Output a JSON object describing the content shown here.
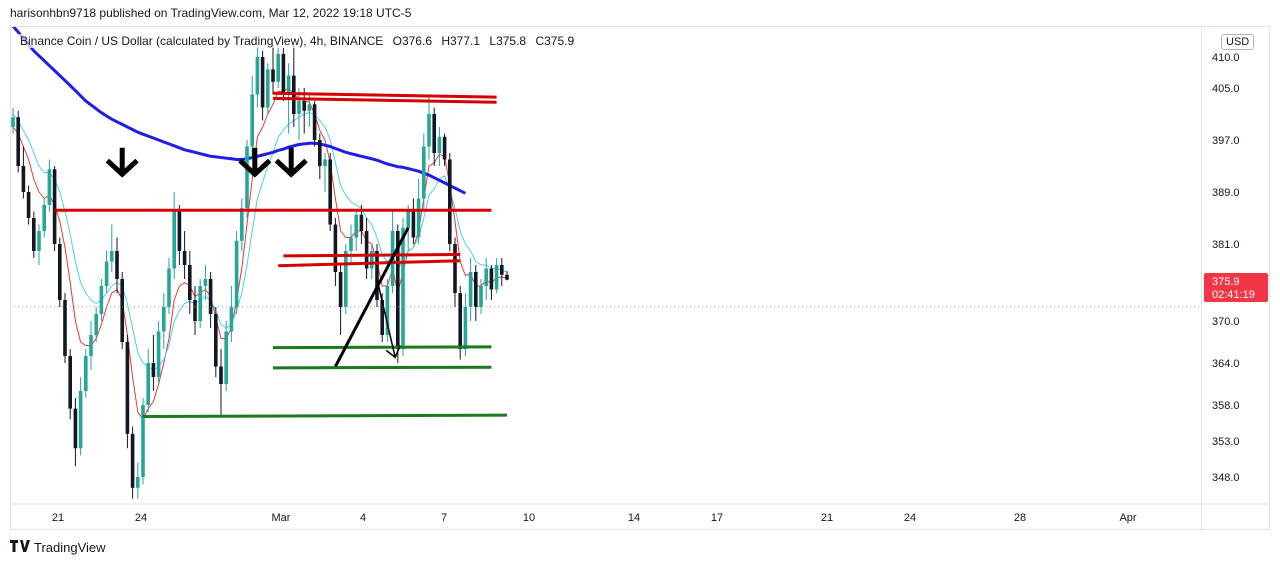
{
  "header": {
    "published": "harisonhbn9718 published on TradingView.com, Mar 12, 2022 19:18 UTC-5"
  },
  "legend": {
    "symbol": "Binance Coin / US Dollar (calculated by TradingView), 4h, BINANCE",
    "open": "O376.6",
    "high": "H377.1",
    "low": "L375.8",
    "close": "C375.9"
  },
  "currency_button": "USD",
  "price_tag": {
    "price": "375.9",
    "countdown": "02:41:19"
  },
  "footer": {
    "brand": "TradingView",
    "logo_icon": "tradingview-logo-icon"
  },
  "colors": {
    "up": "#26a69a",
    "down": "#131722",
    "ema_fast": "#e53935",
    "ema_mid": "#4dd0e1",
    "ma_slow": "#1e1ee8",
    "resistance": "#d50000",
    "support": "#1b7a1b",
    "price_tag": "#f23645"
  },
  "chart_data": {
    "type": "candlestick",
    "title": "",
    "xlabel": "",
    "ylabel": "",
    "x_ticks": [
      "21",
      "24",
      "Mar",
      "4",
      "7",
      "10",
      "14",
      "17",
      "21",
      "24",
      "28",
      "Apr"
    ],
    "y_ticks": [
      410.0,
      405.0,
      397.0,
      389.0,
      381.0,
      370.0,
      364.0,
      358.0,
      353.0,
      348.0
    ],
    "y_tick_labels": [
      "410.0",
      "405.0",
      "397.0",
      "389.0",
      "381.0",
      "370.0",
      "364.0",
      "358.0",
      "353.0",
      "348.0"
    ],
    "ylim": [
      345,
      412
    ],
    "last_close": 375.9,
    "candles": [
      [
        399.0,
        402.0,
        398.0,
        400.5
      ],
      [
        400.5,
        401.5,
        392.0,
        393.0
      ],
      [
        393.0,
        396.0,
        388.0,
        389.0
      ],
      [
        389.0,
        390.0,
        384.0,
        385.0
      ],
      [
        385.0,
        386.0,
        379.0,
        380.0
      ],
      [
        380.0,
        384.0,
        378.0,
        383.0
      ],
      [
        383.0,
        388.0,
        382.0,
        387.0
      ],
      [
        387.0,
        394.0,
        386.0,
        392.5
      ],
      [
        392.5,
        393.0,
        380.0,
        381.0
      ],
      [
        381.0,
        382.0,
        372.0,
        373.0
      ],
      [
        373.0,
        374.0,
        364.0,
        365.0
      ],
      [
        365.0,
        366.0,
        356.0,
        357.5
      ],
      [
        357.5,
        359.0,
        349.5,
        352.0
      ],
      [
        352.0,
        362.0,
        351.0,
        360.0
      ],
      [
        360.0,
        366.0,
        359.0,
        365.0
      ],
      [
        365.0,
        370.0,
        363.0,
        368.0
      ],
      [
        368.0,
        372.0,
        367.0,
        371.0
      ],
      [
        371.0,
        376.0,
        370.0,
        375.0
      ],
      [
        375.0,
        380.0,
        374.0,
        378.5
      ],
      [
        378.5,
        384.0,
        377.0,
        380.0
      ],
      [
        380.0,
        382.0,
        374.0,
        376.0
      ],
      [
        376.0,
        377.0,
        366.0,
        367.0
      ],
      [
        367.0,
        368.0,
        352.0,
        354.0
      ],
      [
        354.0,
        355.0,
        345.0,
        346.5
      ],
      [
        346.5,
        350.0,
        345.0,
        348.0
      ],
      [
        348.0,
        359.0,
        347.0,
        358.0
      ],
      [
        358.0,
        366.0,
        357.0,
        364.0
      ],
      [
        364.0,
        368.0,
        360.0,
        362.0
      ],
      [
        362.0,
        370.0,
        361.0,
        368.5
      ],
      [
        368.5,
        374.0,
        366.0,
        372.0
      ],
      [
        372.0,
        379.0,
        371.0,
        377.5
      ],
      [
        377.5,
        389.0,
        376.0,
        386.0
      ],
      [
        386.0,
        387.0,
        378.0,
        380.0
      ],
      [
        380.0,
        383.0,
        376.0,
        378.0
      ],
      [
        378.0,
        380.0,
        371.0,
        373.0
      ],
      [
        373.0,
        375.0,
        368.0,
        370.0
      ],
      [
        370.0,
        376.0,
        369.0,
        375.0
      ],
      [
        375.0,
        378.0,
        373.0,
        376.0
      ],
      [
        376.0,
        377.0,
        369.0,
        371.0
      ],
      [
        371.0,
        372.0,
        362.0,
        363.5
      ],
      [
        363.5,
        366.0,
        356.5,
        361.0
      ],
      [
        361.0,
        370.0,
        360.0,
        368.5
      ],
      [
        368.5,
        375.0,
        367.0,
        372.0
      ],
      [
        372.0,
        383.0,
        371.0,
        381.5
      ],
      [
        381.5,
        388.0,
        380.0,
        386.5
      ],
      [
        386.5,
        397.0,
        385.0,
        396.0
      ],
      [
        396.0,
        407.0,
        394.0,
        404.0
      ],
      [
        404.0,
        412.0,
        402.0,
        410.0
      ],
      [
        410.0,
        411.0,
        400.0,
        402.0
      ],
      [
        402.0,
        409.0,
        401.0,
        408.0
      ],
      [
        408.0,
        412.0,
        404.0,
        406.0
      ],
      [
        406.0,
        412.0,
        405.0,
        410.5
      ],
      [
        410.5,
        411.5,
        403.0,
        404.0
      ],
      [
        404.0,
        409.0,
        398.0,
        407.0
      ],
      [
        407.0,
        412.0,
        399.0,
        401.0
      ],
      [
        401.0,
        405.0,
        397.0,
        403.0
      ],
      [
        403.0,
        405.0,
        398.0,
        401.5
      ],
      [
        401.5,
        404.0,
        399.0,
        402.5
      ],
      [
        402.5,
        403.0,
        396.0,
        397.0
      ],
      [
        397.0,
        398.0,
        391.0,
        393.0
      ],
      [
        393.0,
        395.0,
        389.0,
        394.0
      ],
      [
        394.0,
        395.0,
        383.0,
        384.0
      ],
      [
        384.0,
        385.0,
        375.0,
        377.0
      ],
      [
        377.0,
        378.0,
        368.0,
        372.0
      ],
      [
        372.0,
        381.0,
        371.0,
        380.0
      ],
      [
        380.0,
        384.0,
        378.0,
        382.0
      ],
      [
        382.0,
        386.0,
        380.0,
        385.5
      ],
      [
        385.5,
        387.0,
        381.0,
        383.0
      ],
      [
        383.0,
        385.0,
        376.0,
        377.5
      ],
      [
        377.5,
        381.0,
        376.0,
        380.0
      ],
      [
        380.0,
        381.0,
        372.0,
        373.0
      ],
      [
        373.0,
        374.0,
        367.0,
        368.0
      ],
      [
        368.0,
        376.0,
        367.0,
        375.0
      ],
      [
        375.0,
        386.0,
        374.0,
        383.0
      ],
      [
        383.0,
        384.0,
        364.0,
        366.0
      ],
      [
        366.0,
        385.0,
        365.0,
        383.5
      ],
      [
        383.5,
        387.0,
        380.0,
        386.0
      ],
      [
        386.0,
        388.0,
        381.0,
        382.0
      ],
      [
        382.0,
        391.0,
        381.0,
        388.0
      ],
      [
        388.0,
        398.0,
        386.0,
        396.0
      ],
      [
        396.0,
        404.0,
        394.0,
        401.0
      ],
      [
        401.0,
        402.0,
        393.0,
        395.0
      ],
      [
        395.0,
        399.0,
        393.0,
        397.5
      ],
      [
        397.5,
        398.0,
        393.0,
        394.0
      ],
      [
        394.0,
        395.0,
        380.0,
        381.0
      ],
      [
        381.0,
        382.0,
        372.0,
        374.0
      ],
      [
        374.0,
        375.0,
        364.5,
        366.0
      ],
      [
        366.0,
        374.0,
        365.0,
        372.0
      ],
      [
        372.0,
        379.0,
        370.0,
        377.0
      ],
      [
        377.0,
        378.0,
        370.0,
        372.0
      ],
      [
        372.0,
        376.0,
        371.0,
        375.0
      ],
      [
        375.0,
        379.0,
        373.0,
        377.5
      ],
      [
        377.5,
        378.0,
        373.0,
        374.5
      ],
      [
        374.5,
        379.0,
        374.0,
        378.0
      ],
      [
        378.0,
        379.0,
        375.0,
        376.6
      ],
      [
        376.6,
        377.1,
        375.8,
        375.9
      ]
    ],
    "moving_averages": [
      {
        "kind": "ema_fast",
        "period_hint": "short",
        "values": [
          399.0,
          398.0,
          396.0,
          394.0,
          391.0,
          389.0,
          388.0,
          388.5,
          387.0,
          384.5,
          380.5,
          375.5,
          370.0,
          367.0,
          366.5,
          366.5,
          367.5,
          369.5,
          372.0,
          374.0,
          374.5,
          373.0,
          368.0,
          362.0,
          357.0,
          356.0,
          357.5,
          358.5,
          361.0,
          364.0,
          367.5,
          373.0,
          375.0,
          375.5,
          375.0,
          373.5,
          374.0,
          374.5,
          373.5,
          370.5,
          367.5,
          367.5,
          369.0,
          373.0,
          377.5,
          384.0,
          391.0,
          397.5,
          399.0,
          401.0,
          402.5,
          404.5,
          404.5,
          405.0,
          404.0,
          403.5,
          403.0,
          402.8,
          401.0,
          398.5,
          397.0,
          393.5,
          388.0,
          383.0,
          382.0,
          382.0,
          383.0,
          383.0,
          381.5,
          381.0,
          378.5,
          375.0,
          375.0,
          377.5,
          374.0,
          377.0,
          380.0,
          380.5,
          383.0,
          388.0,
          393.0,
          393.5,
          394.8,
          394.5,
          390.0,
          384.5,
          378.5,
          376.5,
          376.7,
          375.0,
          375.0,
          375.8,
          375.4,
          376.2,
          376.3,
          376.1
        ]
      },
      {
        "kind": "ema_mid",
        "period_hint": "medium",
        "values": [
          401.0,
          400.0,
          398.5,
          397.0,
          395.0,
          393.0,
          392.0,
          392.0,
          391.0,
          389.0,
          386.0,
          382.5,
          378.5,
          375.5,
          374.0,
          373.0,
          372.5,
          373.0,
          374.0,
          375.0,
          375.5,
          375.0,
          372.5,
          369.0,
          365.5,
          364.0,
          363.5,
          363.0,
          363.5,
          364.5,
          366.5,
          370.0,
          371.5,
          372.5,
          372.8,
          372.5,
          373.0,
          373.5,
          373.0,
          371.5,
          369.5,
          369.0,
          369.5,
          371.5,
          374.0,
          378.0,
          383.0,
          388.0,
          390.5,
          393.0,
          395.0,
          397.5,
          398.5,
          399.5,
          400.0,
          400.5,
          401.0,
          401.2,
          401.0,
          400.0,
          399.0,
          397.0,
          393.5,
          390.0,
          388.5,
          387.5,
          387.0,
          386.5,
          385.0,
          384.0,
          382.0,
          379.5,
          378.5,
          379.5,
          377.5,
          378.5,
          380.0,
          380.5,
          382.0,
          385.0,
          388.5,
          389.5,
          391.0,
          391.5,
          389.5,
          386.5,
          383.0,
          381.0,
          380.0,
          378.5,
          378.0,
          378.0,
          377.5,
          377.5,
          377.3,
          377.0
        ]
      },
      {
        "kind": "ma_slow",
        "period_hint": "long",
        "values": [
          415.0,
          414.0,
          413.0,
          412.0,
          411.0,
          410.2,
          409.4,
          408.6,
          407.8,
          407.0,
          406.2,
          405.4,
          404.6,
          403.8,
          403.0,
          402.4,
          401.8,
          401.2,
          400.7,
          400.2,
          399.8,
          399.4,
          399.0,
          398.6,
          398.2,
          397.9,
          397.6,
          397.3,
          397.0,
          396.7,
          396.4,
          396.1,
          395.8,
          395.5,
          395.3,
          395.1,
          394.9,
          394.7,
          394.5,
          394.4,
          394.3,
          394.2,
          394.1,
          394.0,
          394.0,
          394.1,
          394.3,
          394.5,
          394.7,
          394.9,
          395.1,
          395.4,
          395.6,
          395.9,
          396.1,
          396.3,
          396.4,
          396.5,
          396.5,
          396.4,
          396.2,
          396.0,
          395.7,
          395.4,
          395.1,
          394.9,
          394.7,
          394.5,
          394.3,
          394.1,
          393.9,
          393.6,
          393.3,
          393.1,
          392.9,
          392.8,
          392.6,
          392.4,
          392.2,
          391.9,
          391.6,
          391.2,
          390.8,
          390.4,
          390.0,
          389.6,
          389.2,
          388.8
        ]
      }
    ],
    "drawings": {
      "resistance_lines": [
        {
          "x0": 8,
          "x1": 92,
          "y0": 386.2,
          "y1": 386.2
        },
        {
          "x0": 50,
          "x1": 93,
          "y0": 404.2,
          "y1": 403.6
        },
        {
          "x0": 50,
          "x1": 93,
          "y0": 403.4,
          "y1": 402.8
        },
        {
          "x0": 52,
          "x1": 86,
          "y0": 379.3,
          "y1": 379.5
        },
        {
          "x0": 51,
          "x1": 86,
          "y0": 377.9,
          "y1": 378.6
        }
      ],
      "support_lines": [
        {
          "x0": 50,
          "x1": 92,
          "y0": 366.2,
          "y1": 366.3
        },
        {
          "x0": 50,
          "x1": 92,
          "y0": 363.3,
          "y1": 363.4
        },
        {
          "x0": 25,
          "x1": 95,
          "y0": 356.4,
          "y1": 356.6
        }
      ],
      "trend_line": {
        "x0": 62,
        "y0": 363.5,
        "x1": 76,
        "y1": 383.5
      },
      "projection_arrow": {
        "x0": 70,
        "y0": 376.0,
        "x1": 73.5,
        "y1": 364.8
      },
      "down_arrows": [
        {
          "x": 21,
          "price": 390.5
        },
        {
          "x": 46.5,
          "price": 390.5
        },
        {
          "x": 53.5,
          "price": 390.5
        }
      ]
    }
  }
}
